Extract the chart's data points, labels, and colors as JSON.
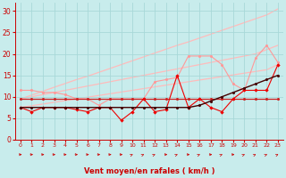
{
  "bg_color": "#c8ecec",
  "grid_color": "#a8d8d8",
  "x": [
    0,
    1,
    2,
    3,
    4,
    5,
    6,
    7,
    8,
    9,
    10,
    11,
    12,
    13,
    14,
    15,
    16,
    17,
    18,
    19,
    20,
    21,
    22,
    23
  ],
  "line_diag_top": [
    9.5,
    10.4,
    11.3,
    12.2,
    13.1,
    14.0,
    14.8,
    15.7,
    16.6,
    17.5,
    18.4,
    19.3,
    20.2,
    21.1,
    22.0,
    22.8,
    23.7,
    24.6,
    25.5,
    26.4,
    27.3,
    28.2,
    29.1,
    30.5
  ],
  "line_diag_mid": [
    9.5,
    10.0,
    10.5,
    11.0,
    11.5,
    12.0,
    12.5,
    13.0,
    13.5,
    14.0,
    14.5,
    15.0,
    15.5,
    16.0,
    16.5,
    17.0,
    17.5,
    18.0,
    18.5,
    19.0,
    19.5,
    20.0,
    21.0,
    22.0
  ],
  "line_pink_markers": [
    11.5,
    11.5,
    11.0,
    11.0,
    10.5,
    9.5,
    9.5,
    8.0,
    9.5,
    9.5,
    9.5,
    9.5,
    13.5,
    14.0,
    14.5,
    19.5,
    19.5,
    19.5,
    17.5,
    13.0,
    11.5,
    19.0,
    22.0,
    18.0
  ],
  "line_darkred_flat": [
    9.5,
    9.5,
    9.5,
    9.5,
    9.5,
    9.5,
    9.5,
    9.5,
    9.5,
    9.5,
    9.5,
    9.5,
    9.5,
    9.5,
    9.5,
    9.5,
    9.5,
    9.5,
    9.5,
    9.5,
    9.5,
    9.5,
    9.5,
    9.5
  ],
  "line_red_jagged": [
    7.5,
    6.5,
    7.5,
    7.5,
    7.5,
    7.0,
    6.5,
    7.5,
    7.5,
    4.5,
    6.5,
    9.5,
    6.5,
    7.0,
    15.0,
    7.5,
    9.5,
    7.5,
    6.5,
    9.5,
    11.5,
    11.5,
    11.5,
    17.5
  ],
  "line_black": [
    7.5,
    7.5,
    7.5,
    7.5,
    7.5,
    7.5,
    7.5,
    7.5,
    7.5,
    7.5,
    7.5,
    7.5,
    7.5,
    7.5,
    7.5,
    7.5,
    8.0,
    9.0,
    10.0,
    11.0,
    12.0,
    13.0,
    14.0,
    15.0
  ],
  "line_diag_lower": [
    7.5,
    7.9,
    8.3,
    8.7,
    9.1,
    9.5,
    9.9,
    10.3,
    10.7,
    11.1,
    11.5,
    11.9,
    12.3,
    12.7,
    13.1,
    13.5,
    13.9,
    14.3,
    14.7,
    15.1,
    15.5,
    15.9,
    16.3,
    17.5
  ],
  "arrows_angled": [
    0,
    0,
    0,
    0,
    0,
    0,
    0,
    0,
    0,
    0,
    1,
    1,
    1,
    0,
    1,
    0,
    1,
    0,
    1,
    0,
    1,
    1,
    1,
    1
  ],
  "ylabel_vals": [
    0,
    5,
    10,
    15,
    20,
    25,
    30
  ],
  "xlabel": "Vent moyen/en rafales ( km/h )",
  "xlabel_color": "#cc0000",
  "tick_color": "#cc0000",
  "axis_color": "#cc0000"
}
